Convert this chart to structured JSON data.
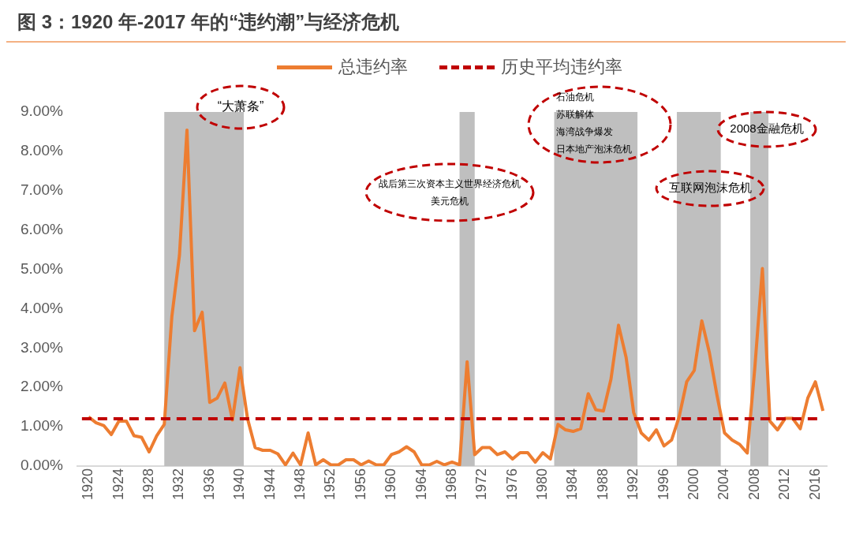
{
  "chart_data": {
    "type": "line",
    "title": "图 3：1920 年-2017 年的“违约潮”与经济危机",
    "x": [
      1920,
      1921,
      1922,
      1923,
      1924,
      1925,
      1926,
      1927,
      1928,
      1929,
      1930,
      1931,
      1932,
      1933,
      1934,
      1935,
      1936,
      1937,
      1938,
      1939,
      1940,
      1941,
      1942,
      1943,
      1944,
      1945,
      1946,
      1947,
      1948,
      1949,
      1950,
      1951,
      1952,
      1953,
      1954,
      1955,
      1956,
      1957,
      1958,
      1959,
      1960,
      1961,
      1962,
      1963,
      1964,
      1965,
      1966,
      1967,
      1968,
      1969,
      1970,
      1971,
      1972,
      1973,
      1974,
      1975,
      1976,
      1977,
      1978,
      1979,
      1980,
      1981,
      1982,
      1983,
      1984,
      1985,
      1986,
      1987,
      1988,
      1989,
      1990,
      1991,
      1992,
      1993,
      1994,
      1995,
      1996,
      1997,
      1998,
      1999,
      2000,
      2001,
      2002,
      2003,
      2004,
      2005,
      2006,
      2007,
      2008,
      2009,
      2010,
      2011,
      2012,
      2013,
      2014,
      2015,
      2016,
      2017
    ],
    "series": [
      {
        "name": "总违约率",
        "color": "#ed7d31",
        "values": [
          1.25,
          1.1,
          1.03,
          0.8,
          1.14,
          1.14,
          0.77,
          0.73,
          0.36,
          0.77,
          1.06,
          3.8,
          5.35,
          8.54,
          3.44,
          3.91,
          1.62,
          1.73,
          2.11,
          1.17,
          2.5,
          1.2,
          0.47,
          0.4,
          0.4,
          0.31,
          0.03,
          0.33,
          0.03,
          0.84,
          0.03,
          0.16,
          0.03,
          0.03,
          0.16,
          0.16,
          0.03,
          0.13,
          0.03,
          0.03,
          0.29,
          0.36,
          0.49,
          0.36,
          0.03,
          0.03,
          0.12,
          0.03,
          0.1,
          0.03,
          2.65,
          0.29,
          0.47,
          0.47,
          0.29,
          0.36,
          0.18,
          0.34,
          0.34,
          0.1,
          0.34,
          0.18,
          1.06,
          0.92,
          0.88,
          0.95,
          1.84,
          1.43,
          1.4,
          2.21,
          3.58,
          2.76,
          1.36,
          0.84,
          0.66,
          0.92,
          0.51,
          0.66,
          1.25,
          2.14,
          2.43,
          3.69,
          2.88,
          1.8,
          0.84,
          0.66,
          0.55,
          0.33,
          2.5,
          5.02,
          1.14,
          0.92,
          1.21,
          1.21,
          0.95,
          1.73,
          2.14,
          1.4
        ]
      }
    ],
    "xlim": [
      1918.5,
      2017.5
    ],
    "xticks": [
      1920,
      1924,
      1928,
      1932,
      1936,
      1940,
      1944,
      1948,
      1952,
      1956,
      1960,
      1964,
      1968,
      1972,
      1976,
      1980,
      1984,
      1988,
      1992,
      1996,
      2000,
      2004,
      2008,
      2012,
      2016
    ],
    "ylim": [
      0,
      9
    ],
    "yticks": [
      {
        "value": 0,
        "label": "0.00%"
      },
      {
        "value": 1,
        "label": "1.00%"
      },
      {
        "value": 2,
        "label": "2.00%"
      },
      {
        "value": 3,
        "label": "3.00%"
      },
      {
        "value": 4,
        "label": "4.00%"
      },
      {
        "value": 5,
        "label": "5.00%"
      },
      {
        "value": 6,
        "label": "6.00%"
      },
      {
        "value": 7,
        "label": "7.00%"
      },
      {
        "value": 8,
        "label": "8.00%"
      },
      {
        "value": 9,
        "label": "9.00%"
      }
    ],
    "ref_lines": [
      {
        "axis": "y",
        "value": 1.2,
        "label": "历史平均违约率",
        "color": "#c00000",
        "line_style": "dashed"
      }
    ],
    "bands": [
      {
        "axis": "x",
        "from": 1930,
        "to": 1940.5,
        "color": "#bfbfbf"
      },
      {
        "axis": "x",
        "from": 1969,
        "to": 1971,
        "color": "#bfbfbf"
      },
      {
        "axis": "x",
        "from": 1981.5,
        "to": 1992.5,
        "color": "#bfbfbf"
      },
      {
        "axis": "x",
        "from": 1997.7,
        "to": 2003.5,
        "color": "#bfbfbf"
      },
      {
        "axis": "x",
        "from": 2007.4,
        "to": 2009.8,
        "color": "#bfbfbf"
      }
    ],
    "annotations": [
      "“大萧条”",
      "战后第三次资本主义世界经济危机",
      "美元危机",
      "石油危机",
      "苏联解体",
      "海湾战争爆发",
      "日本地产泡沫危机",
      "互联网泡沫危机",
      "2008金融危机"
    ],
    "legend": "top",
    "grid": false,
    "marker": "none",
    "line_style": "solid"
  }
}
